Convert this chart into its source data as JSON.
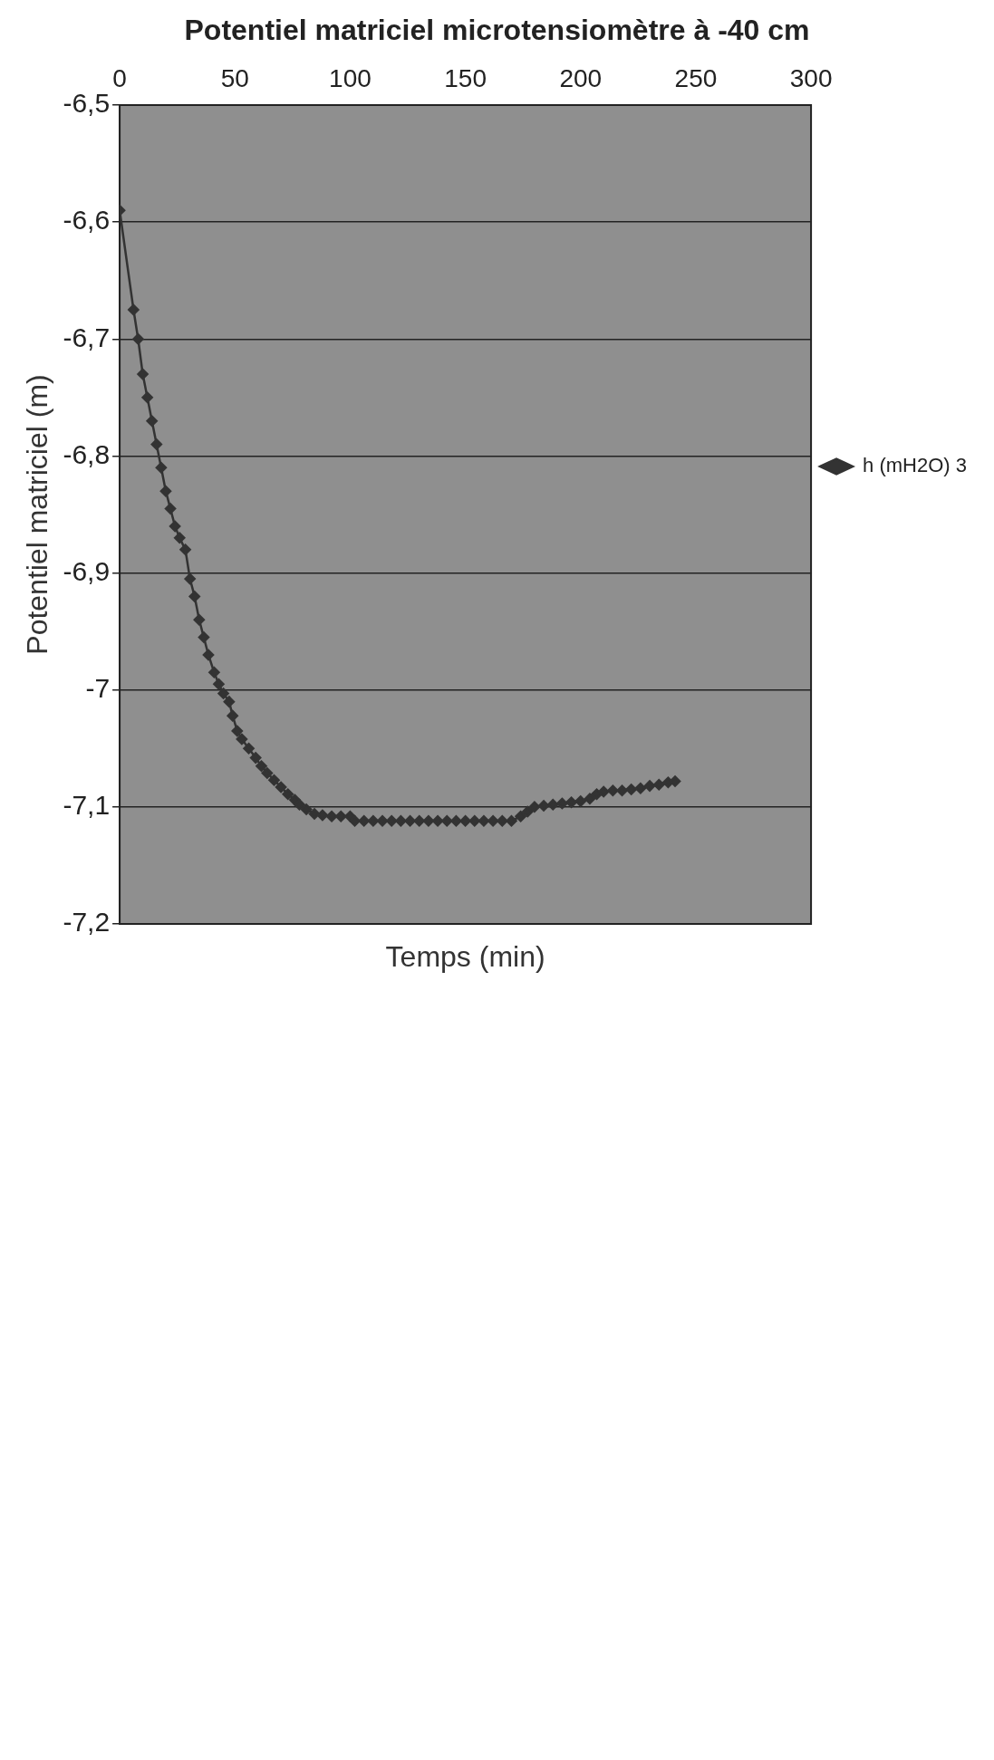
{
  "chart_data": {
    "type": "line",
    "title": "Potentiel matriciel microtensiomètre à -40 cm",
    "xlabel": "Temps (min)",
    "ylabel": "Potentiel matriciel (m)",
    "xlim": [
      0,
      300
    ],
    "xticks": [
      0,
      50,
      100,
      150,
      200,
      250,
      300
    ],
    "ylim": [
      -7.2,
      -6.5
    ],
    "yticks": [
      {
        "value": -7.2,
        "label": "-7,2"
      },
      {
        "value": -7.1,
        "label": "-7,1"
      },
      -7,
      {
        "value": -6.9,
        "label": "-6,9"
      },
      {
        "value": -6.8,
        "label": "-6,8"
      },
      {
        "value": -6.7,
        "label": "-6,7"
      },
      {
        "value": -6.6,
        "label": "-6,6"
      },
      {
        "value": -6.5,
        "label": "-6,5"
      }
    ],
    "grid": "y",
    "legend": "right",
    "marker": "diamond",
    "line_style": "solid",
    "series": [
      {
        "name": "h (mH2O) 3",
        "color": "#333333",
        "x": [
          0,
          6,
          8,
          10,
          12,
          14,
          16,
          18,
          20,
          22,
          24,
          26,
          28.5,
          30.5,
          32.5,
          34.5,
          36.5,
          38.5,
          41,
          43,
          45,
          47.5,
          49,
          51,
          53,
          56,
          59,
          61.5,
          64,
          67,
          70,
          73,
          76,
          78,
          81,
          84.5,
          88,
          92,
          96,
          100,
          102,
          106,
          110,
          114,
          118,
          122,
          126,
          130,
          134,
          138,
          142,
          146,
          150,
          154,
          158,
          162,
          166,
          170,
          174,
          177,
          180,
          184,
          188,
          192,
          196,
          200,
          204,
          207,
          210,
          214,
          218,
          222,
          226,
          230,
          234,
          238,
          241
        ],
        "values": [
          -6.59,
          -6.675,
          -6.7,
          -6.73,
          -6.75,
          -6.77,
          -6.79,
          -6.81,
          -6.83,
          -6.845,
          -6.86,
          -6.87,
          -6.88,
          -6.905,
          -6.92,
          -6.94,
          -6.955,
          -6.97,
          -6.985,
          -6.995,
          -7.003,
          -7.01,
          -7.022,
          -7.035,
          -7.042,
          -7.05,
          -7.058,
          -7.065,
          -7.071,
          -7.077,
          -7.083,
          -7.089,
          -7.094,
          -7.098,
          -7.102,
          -7.106,
          -7.107,
          -7.108,
          -7.108,
          -7.108,
          -7.112,
          -7.112,
          -7.112,
          -7.112,
          -7.112,
          -7.112,
          -7.112,
          -7.112,
          -7.112,
          -7.112,
          -7.112,
          -7.112,
          -7.112,
          -7.112,
          -7.112,
          -7.112,
          -7.112,
          -7.112,
          -7.108,
          -7.104,
          -7.1,
          -7.099,
          -7.098,
          -7.097,
          -7.096,
          -7.095,
          -7.093,
          -7.089,
          -7.087,
          -7.086,
          -7.086,
          -7.085,
          -7.084,
          -7.082,
          -7.081,
          -7.079,
          -7.078
        ]
      }
    ]
  }
}
